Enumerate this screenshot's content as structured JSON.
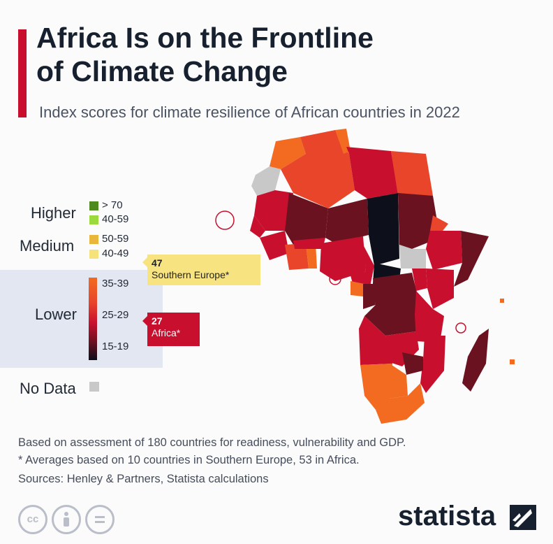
{
  "header": {
    "title_line1": "Africa Is on the Frontline",
    "title_line2": "of Climate Change",
    "subtitle": "Index scores for climate resilience of African countries in 2022"
  },
  "legend": {
    "higher_label": "Higher",
    "medium_label": "Medium",
    "lower_label": "Lower",
    "no_data_label": "No Data",
    "items": [
      {
        "range": "> 70",
        "color": "#4e8a1e"
      },
      {
        "range": "40-59",
        "color": "#9bd93c"
      },
      {
        "range": "50-59",
        "color": "#e8b63a"
      },
      {
        "range": "40-49",
        "color": "#f5e37a"
      },
      {
        "range": "35-39",
        "color": "#f26b21"
      },
      {
        "range": "25-29",
        "color": "#c8102e"
      },
      {
        "range": "15-19",
        "color": "#0d0f1a"
      }
    ],
    "no_data_color": "#c8c8c8"
  },
  "callouts": {
    "europe_value": "47",
    "europe_label": "Southern Europe*",
    "africa_value": "27",
    "africa_label": "Africa*"
  },
  "footer": {
    "note1": "Based on assessment of 180 countries for readiness, vulnerability and GDP.",
    "note2": "* Averages based on 10 countries in Southern Europe, 53 in Africa.",
    "sources": "Sources: Henley & Partners, Statista calculations",
    "brand": "statista",
    "cc_icons": [
      "cc-icon",
      "by-icon",
      "nd-icon"
    ]
  },
  "colors": {
    "accent": "#c8102e",
    "title": "#16202e"
  }
}
